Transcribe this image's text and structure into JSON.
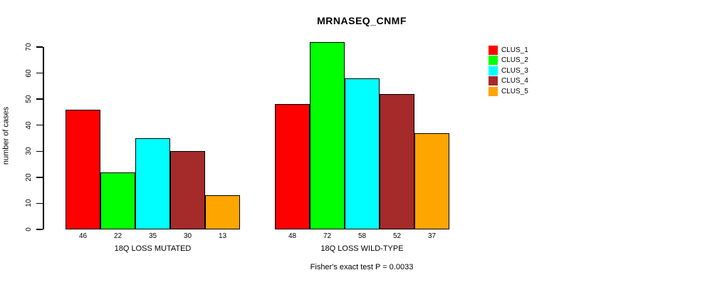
{
  "chart_data": {
    "type": "bar",
    "title": "MRNASEQ_CNMF",
    "ylabel": "number of cases",
    "ylim": [
      0,
      70
    ],
    "yticks": [
      0,
      10,
      20,
      30,
      40,
      50,
      60,
      70
    ],
    "categories": [
      "18Q LOSS MUTATED",
      "18Q LOSS WILD-TYPE"
    ],
    "series": [
      {
        "name": "CLUS_1",
        "color": "#FF0000",
        "values": [
          46,
          48
        ]
      },
      {
        "name": "CLUS_2",
        "color": "#00FF00",
        "values": [
          22,
          72
        ]
      },
      {
        "name": "CLUS_3",
        "color": "#00FFFF",
        "values": [
          35,
          58
        ]
      },
      {
        "name": "CLUS_4",
        "color": "#A52A2A",
        "values": [
          30,
          52
        ]
      },
      {
        "name": "CLUS_5",
        "color": "#FFA500",
        "values": [
          13,
          37
        ]
      }
    ],
    "bar_value_labels": true,
    "legend_position": "right",
    "grid": false,
    "footnote": "Fisher's exact test P = 0.0033"
  }
}
